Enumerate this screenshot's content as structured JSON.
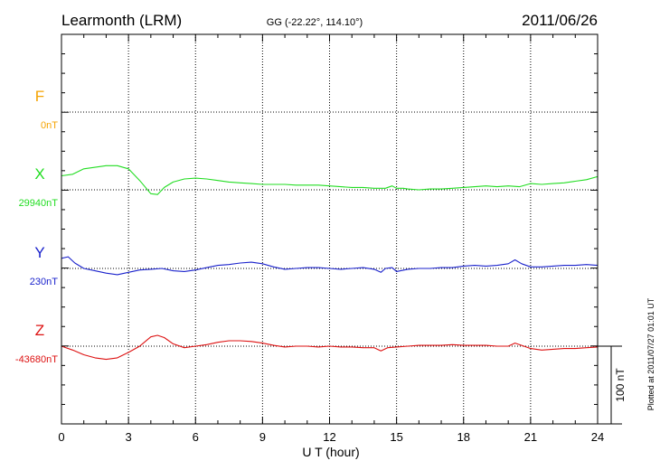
{
  "chart_data": {
    "type": "line",
    "station": "Learmonth (LRM)",
    "coords": "GG (-22.22°, 114.10°)",
    "date": "2011/06/26",
    "xlabel": "U T (hour)",
    "xlim": [
      0,
      24
    ],
    "xticks": [
      "0",
      "3",
      "6",
      "9",
      "12",
      "15",
      "18",
      "21",
      "24"
    ],
    "scale_label": "100 nT",
    "plotted_note": "Plotted at 2011/07/27 01:01 UT",
    "grid": true,
    "series": [
      {
        "name": "F",
        "baseline_label": "0nT",
        "color": "#f5a300",
        "x": [],
        "y": []
      },
      {
        "name": "X",
        "baseline_label": "29940nT",
        "color": "#22dd22",
        "x": [
          0,
          0.5,
          1,
          1.5,
          2,
          2.5,
          3,
          3.5,
          4,
          4.3,
          4.6,
          5,
          5.5,
          6,
          6.5,
          7,
          7.5,
          8,
          8.5,
          9,
          9.5,
          10,
          10.5,
          11,
          11.5,
          12,
          12.5,
          13,
          13.5,
          14,
          14.5,
          14.8,
          15,
          15.3,
          15.5,
          16,
          16.5,
          17,
          17.5,
          18,
          18.5,
          19,
          19.5,
          20,
          20.5,
          21,
          21.5,
          22,
          22.5,
          23,
          23.5,
          24
        ],
        "y": [
          18,
          20,
          27,
          29,
          31,
          31,
          27,
          12,
          -5,
          -6,
          3,
          10,
          14,
          15,
          14,
          12,
          10,
          9,
          8,
          7,
          7,
          7,
          6,
          6,
          6,
          5,
          4,
          3,
          3,
          2,
          2,
          5,
          2,
          2,
          1,
          0,
          1,
          1,
          2,
          3,
          4,
          5,
          4,
          5,
          4,
          8,
          7,
          8,
          9,
          11,
          13,
          17
        ]
      },
      {
        "name": "Y",
        "baseline_label": "230nT",
        "color": "#1a22cc",
        "x": [
          0,
          0.3,
          0.6,
          1,
          1.5,
          2,
          2.5,
          3,
          3.5,
          4,
          4.5,
          5,
          5.5,
          6,
          6.5,
          7,
          7.5,
          8,
          8.5,
          9,
          9.5,
          10,
          10.5,
          11,
          11.5,
          12,
          12.5,
          13,
          13.5,
          14,
          14.3,
          14.5,
          14.8,
          15,
          15.5,
          16,
          16.5,
          17,
          17.5,
          18,
          18.5,
          19,
          19.5,
          20,
          20.3,
          20.6,
          21,
          21.5,
          22,
          22.5,
          23,
          23.5,
          24
        ],
        "y": [
          13,
          15,
          7,
          0,
          -3,
          -6,
          -8,
          -5,
          -2,
          -1,
          0,
          -3,
          -4,
          -2,
          1,
          4,
          5,
          7,
          8,
          6,
          2,
          -1,
          0,
          1,
          1,
          0,
          -1,
          0,
          1,
          -1,
          -5,
          0,
          1,
          -4,
          -1,
          0,
          0,
          1,
          1,
          3,
          4,
          3,
          4,
          6,
          11,
          6,
          2,
          2,
          3,
          4,
          4,
          5,
          4
        ]
      },
      {
        "name": "Z",
        "baseline_label": "-43680nT",
        "color": "#dd1111",
        "x": [
          0,
          0.5,
          1,
          1.5,
          2,
          2.5,
          3,
          3.5,
          4,
          4.3,
          4.6,
          5,
          5.5,
          6,
          6.5,
          7,
          7.5,
          8,
          8.5,
          9,
          9.5,
          10,
          10.5,
          11,
          11.5,
          12,
          12.5,
          13,
          13.5,
          14,
          14.3,
          14.6,
          15,
          15.5,
          16,
          16.5,
          17,
          17.5,
          18,
          18.5,
          19,
          19.5,
          20,
          20.3,
          20.6,
          21,
          21.5,
          22,
          22.5,
          23,
          23.5,
          24
        ],
        "y": [
          0,
          -5,
          -11,
          -15,
          -17,
          -15,
          -8,
          0,
          12,
          14,
          11,
          3,
          -2,
          0,
          2,
          5,
          7,
          7,
          6,
          4,
          1,
          -1,
          0,
          0,
          -1,
          0,
          -1,
          -1,
          -2,
          -2,
          -6,
          -2,
          -1,
          0,
          1,
          1,
          1,
          2,
          1,
          1,
          1,
          0,
          0,
          4,
          1,
          -3,
          -5,
          -4,
          -3,
          -3,
          -2,
          -1
        ]
      }
    ]
  }
}
